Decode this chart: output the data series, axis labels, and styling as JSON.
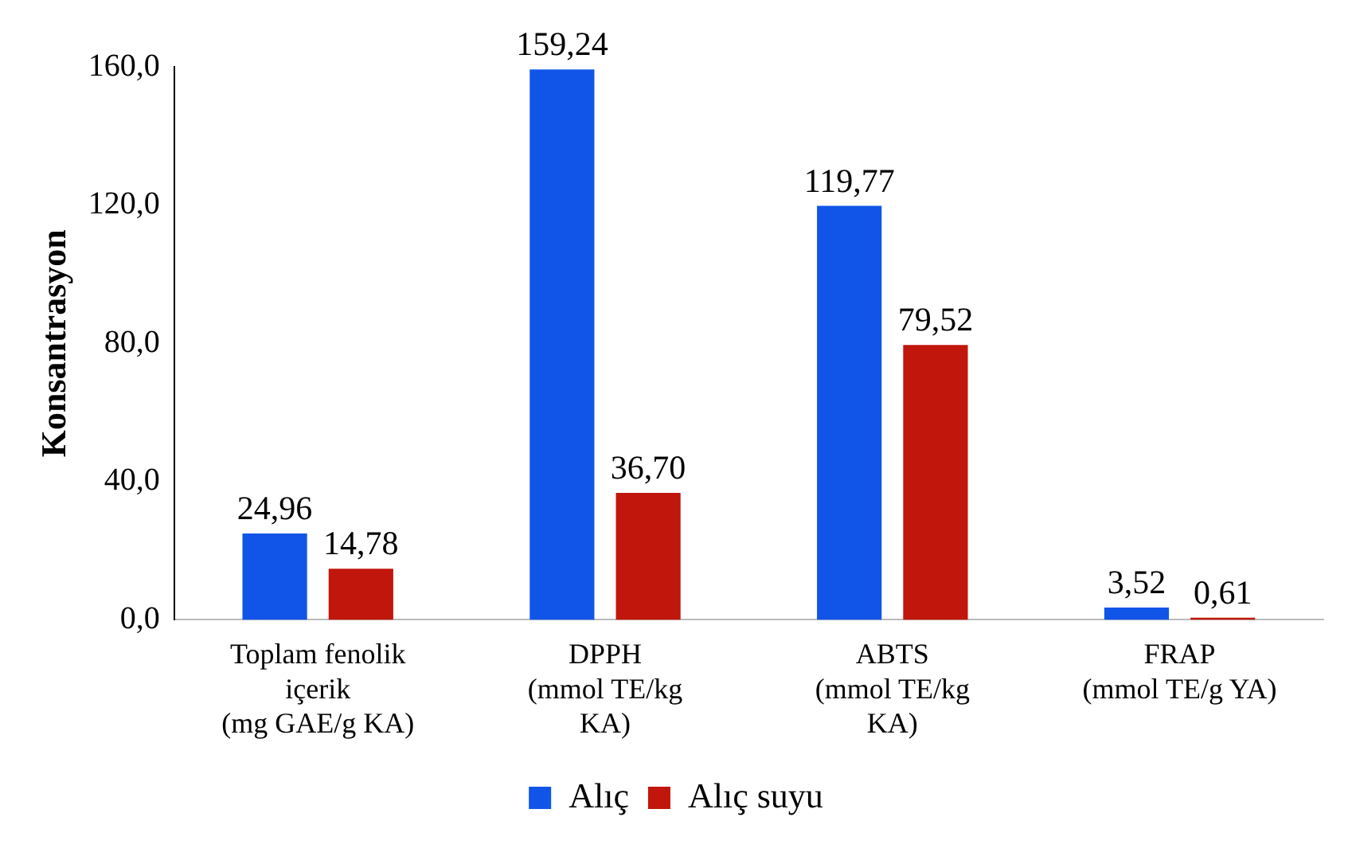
{
  "chart_data": {
    "type": "bar",
    "ylabel": "Konsantrasyon",
    "categories": [
      "Toplam fenolik\niçerik\n(mg GAE/g KA)",
      "DPPH\n(mmol TE/kg\nKA)",
      "ABTS\n(mmol TE/kg\nKA)",
      "FRAP\n(mmol TE/g YA)"
    ],
    "series": [
      {
        "name": "Alıç",
        "color": "#1155e8",
        "values": [
          24.96,
          159.24,
          119.77,
          3.52
        ],
        "value_labels": [
          "24,96",
          "159,24",
          "119,77",
          "3,52"
        ]
      },
      {
        "name": "Alıç suyu",
        "color": "#c0160c",
        "values": [
          14.78,
          36.7,
          79.52,
          0.61
        ],
        "value_labels": [
          "14,78",
          "36,70",
          "79,52",
          "0,61"
        ]
      }
    ],
    "ylim": [
      0,
      160
    ],
    "yticks": [
      {
        "value": 0,
        "label": "0,0"
      },
      {
        "value": 40,
        "label": "40,0"
      },
      {
        "value": 80,
        "label": "80,0"
      },
      {
        "value": 120,
        "label": "120,0"
      },
      {
        "value": 160,
        "label": "160,0"
      }
    ],
    "grid": false,
    "legend": "bottom"
  }
}
